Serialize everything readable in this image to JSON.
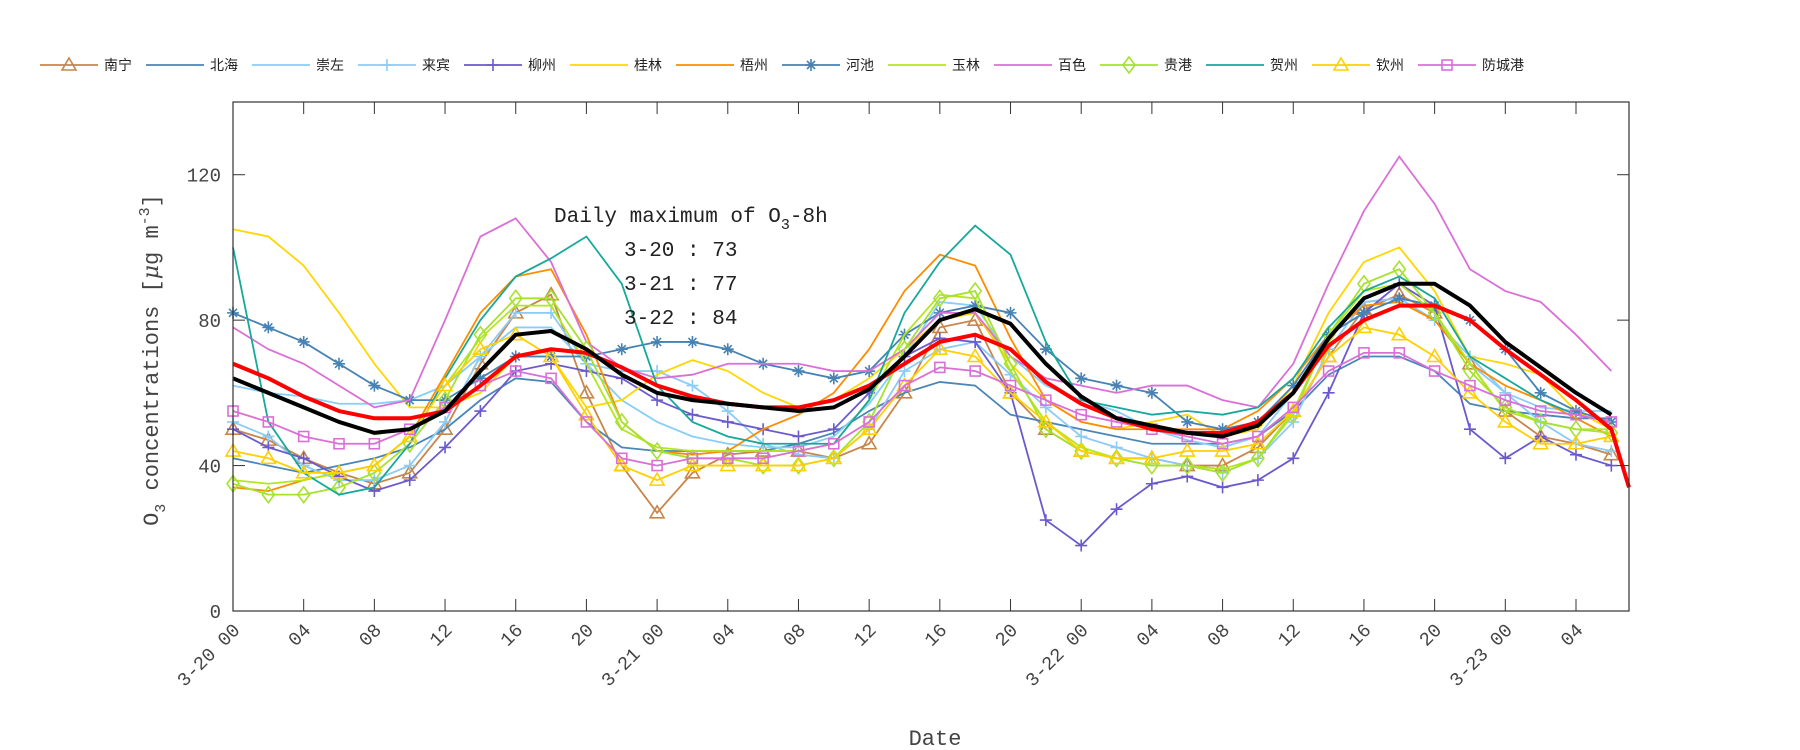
{
  "chart_data": {
    "type": "line",
    "title": "",
    "xlabel": "Date",
    "ylabel": "O3 concentrations [μg m-3]",
    "ylabel_parts": {
      "species": "O",
      "sub": "3",
      "text": " concentrations [",
      "mu": "μ",
      "unit": "g m",
      "sup": "-3",
      "close": "]"
    },
    "xlim": [
      0,
      79
    ],
    "ylim": [
      0,
      140
    ],
    "yticks": [
      0,
      40,
      80,
      120
    ],
    "xticks": [
      {
        "hour": 0,
        "label": "3-20 00"
      },
      {
        "hour": 4,
        "label": "04"
      },
      {
        "hour": 8,
        "label": "08"
      },
      {
        "hour": 12,
        "label": "12"
      },
      {
        "hour": 16,
        "label": "16"
      },
      {
        "hour": 20,
        "label": "20"
      },
      {
        "hour": 24,
        "label": "3-21 00"
      },
      {
        "hour": 28,
        "label": "04"
      },
      {
        "hour": 32,
        "label": "08"
      },
      {
        "hour": 36,
        "label": "12"
      },
      {
        "hour": 40,
        "label": "16"
      },
      {
        "hour": 44,
        "label": "20"
      },
      {
        "hour": 48,
        "label": "3-22 00"
      },
      {
        "hour": 52,
        "label": "04"
      },
      {
        "hour": 56,
        "label": "08"
      },
      {
        "hour": 60,
        "label": "12"
      },
      {
        "hour": 64,
        "label": "16"
      },
      {
        "hour": 68,
        "label": "20"
      },
      {
        "hour": 72,
        "label": "3-23 00"
      },
      {
        "hour": 76,
        "label": "04"
      }
    ],
    "grid": false,
    "legend_placement": "top",
    "annotation": {
      "title": "Daily maximum of O",
      "title_sub": "3",
      "title_end": "-8h",
      "lines": [
        "3-20 : 73",
        "3-21 : 77",
        "3-22 : 84"
      ]
    },
    "x": [
      0,
      2,
      4,
      6,
      8,
      10,
      12,
      14,
      16,
      18,
      20,
      22,
      24,
      26,
      28,
      30,
      32,
      34,
      36,
      38,
      40,
      42,
      44,
      46,
      48,
      50,
      52,
      54,
      56,
      58,
      60,
      62,
      64,
      66,
      68,
      70,
      72,
      74,
      76,
      78
    ],
    "series": [
      {
        "name": "南宁",
        "color": "#C8864A",
        "marker": "triangle",
        "values": [
          50,
          47,
          42,
          38,
          35,
          38,
          50,
          68,
          82,
          87,
          60,
          40,
          27,
          38,
          43,
          44,
          44,
          42,
          46,
          60,
          78,
          80,
          60,
          50,
          44,
          42,
          42,
          40,
          40,
          45,
          55,
          70,
          83,
          87,
          82,
          68,
          55,
          48,
          46,
          43
        ]
      },
      {
        "name": "北海",
        "color": "#4A86B8",
        "marker": "none",
        "values": [
          42,
          40,
          38,
          40,
          42,
          45,
          50,
          58,
          64,
          63,
          52,
          45,
          44,
          44,
          44,
          44,
          46,
          49,
          55,
          60,
          63,
          62,
          54,
          52,
          50,
          48,
          46,
          46,
          46,
          48,
          55,
          65,
          70,
          70,
          66,
          57,
          55,
          54,
          53,
          53
        ]
      },
      {
        "name": "崇左",
        "color": "#87CEFA",
        "marker": "none",
        "values": [
          62,
          60,
          59,
          57,
          57,
          58,
          62,
          70,
          78,
          78,
          68,
          58,
          52,
          48,
          46,
          45,
          45,
          48,
          57,
          70,
          85,
          84,
          70,
          62,
          58,
          55,
          50,
          47,
          45,
          48,
          60,
          75,
          85,
          86,
          80,
          68,
          60,
          56,
          55,
          55
        ]
      },
      {
        "name": "来宾",
        "color": "#8CCBF5",
        "marker": "plus",
        "values": [
          52,
          48,
          40,
          36,
          36,
          40,
          52,
          70,
          82,
          82,
          68,
          66,
          66,
          62,
          55,
          46,
          43,
          42,
          50,
          66,
          72,
          74,
          65,
          56,
          48,
          45,
          42,
          40,
          38,
          42,
          52,
          72,
          85,
          86,
          80,
          70,
          60,
          52,
          46,
          44
        ]
      },
      {
        "name": "柳州",
        "color": "#6A5ACD",
        "marker": "plus",
        "values": [
          50,
          45,
          42,
          37,
          33,
          36,
          45,
          55,
          66,
          68,
          66,
          64,
          58,
          54,
          52,
          50,
          48,
          50,
          60,
          70,
          75,
          74,
          60,
          25,
          18,
          28,
          35,
          37,
          34,
          36,
          42,
          60,
          82,
          90,
          84,
          50,
          42,
          48,
          43,
          40
        ]
      },
      {
        "name": "桂林",
        "color": "#FFD700",
        "marker": "none",
        "values": [
          105,
          103,
          95,
          82,
          68,
          56,
          56,
          60,
          70,
          70,
          56,
          58,
          65,
          69,
          66,
          60,
          56,
          58,
          64,
          72,
          80,
          82,
          68,
          58,
          52,
          50,
          52,
          54,
          48,
          50,
          62,
          82,
          96,
          100,
          88,
          70,
          68,
          65,
          55,
          50
        ]
      },
      {
        "name": "梧州",
        "color": "#FF8C00",
        "marker": "none",
        "values": [
          34,
          33,
          36,
          38,
          40,
          48,
          65,
          82,
          92,
          94,
          76,
          52,
          44,
          43,
          44,
          50,
          54,
          60,
          72,
          88,
          98,
          95,
          75,
          58,
          52,
          50,
          50,
          50,
          50,
          55,
          64,
          76,
          84,
          85,
          80,
          68,
          62,
          58,
          53,
          48
        ]
      },
      {
        "name": "河池",
        "color": "#4682B4",
        "marker": "asterisk",
        "values": [
          82,
          78,
          74,
          68,
          62,
          58,
          58,
          64,
          70,
          70,
          70,
          72,
          74,
          74,
          72,
          68,
          66,
          64,
          66,
          76,
          82,
          84,
          82,
          72,
          64,
          62,
          60,
          52,
          50,
          52,
          62,
          76,
          82,
          86,
          84,
          80,
          72,
          60,
          55,
          52
        ]
      },
      {
        "name": "玉林",
        "color": "#B5E61D",
        "marker": "none",
        "values": [
          36,
          35,
          36,
          38,
          40,
          48,
          62,
          75,
          84,
          84,
          68,
          50,
          45,
          44,
          44,
          44,
          44,
          46,
          58,
          76,
          87,
          86,
          66,
          52,
          45,
          42,
          40,
          40,
          39,
          42,
          55,
          76,
          88,
          90,
          82,
          68,
          55,
          52,
          50,
          50
        ]
      },
      {
        "name": "百色",
        "color": "#DA70D6",
        "marker": "none",
        "values": [
          78,
          72,
          68,
          62,
          56,
          58,
          80,
          103,
          108,
          96,
          74,
          67,
          64,
          65,
          68,
          68,
          68,
          66,
          66,
          72,
          82,
          82,
          70,
          64,
          62,
          60,
          62,
          62,
          58,
          56,
          68,
          90,
          110,
          125,
          112,
          94,
          88,
          85,
          76,
          66
        ]
      },
      {
        "name": "贵港",
        "color": "#A6E22E",
        "marker": "diamond",
        "values": [
          35,
          32,
          32,
          34,
          38,
          46,
          58,
          76,
          86,
          86,
          72,
          52,
          44,
          42,
          42,
          40,
          40,
          42,
          52,
          72,
          86,
          88,
          68,
          50,
          44,
          42,
          40,
          40,
          38,
          42,
          54,
          76,
          90,
          94,
          82,
          66,
          56,
          52,
          50,
          49
        ]
      },
      {
        "name": "贺州",
        "color": "#17A89C",
        "marker": "none",
        "values": [
          100,
          52,
          38,
          32,
          34,
          46,
          64,
          80,
          92,
          97,
          103,
          90,
          62,
          52,
          48,
          46,
          46,
          46,
          58,
          82,
          96,
          106,
          98,
          74,
          58,
          56,
          54,
          55,
          54,
          56,
          64,
          78,
          88,
          92,
          86,
          70,
          64,
          58,
          54,
          52
        ]
      },
      {
        "name": "钦州",
        "color": "#FFD000",
        "marker": "triangle",
        "values": [
          44,
          42,
          38,
          38,
          40,
          48,
          62,
          72,
          76,
          70,
          54,
          40,
          36,
          40,
          40,
          40,
          40,
          42,
          50,
          62,
          72,
          70,
          60,
          52,
          44,
          42,
          42,
          44,
          44,
          46,
          55,
          70,
          78,
          76,
          70,
          60,
          52,
          46,
          46,
          48
        ]
      },
      {
        "name": "防城港",
        "color": "#DA70D6",
        "marker": "square",
        "values": [
          55,
          52,
          48,
          46,
          46,
          50,
          56,
          62,
          66,
          64,
          52,
          42,
          40,
          42,
          42,
          42,
          44,
          46,
          52,
          62,
          67,
          66,
          62,
          58,
          54,
          52,
          50,
          48,
          46,
          48,
          56,
          66,
          71,
          71,
          66,
          62,
          58,
          55,
          54,
          52
        ]
      }
    ],
    "extra_lines": [
      {
        "color": "#FF0000",
        "x": [
          0,
          2,
          4,
          6,
          8,
          10,
          12,
          14,
          16,
          18,
          20,
          22,
          24,
          26,
          28,
          30,
          32,
          34,
          36,
          38,
          40,
          42,
          44,
          46,
          48,
          50,
          52,
          54,
          56,
          58,
          60,
          62,
          64,
          66,
          68,
          70,
          72,
          74,
          76,
          78,
          79
        ],
        "values": [
          68,
          64,
          59,
          55,
          53,
          53,
          55,
          62,
          70,
          72,
          71,
          67,
          62,
          59,
          57,
          56,
          56,
          58,
          62,
          68,
          74,
          76,
          72,
          63,
          57,
          53,
          50,
          49,
          49,
          52,
          60,
          73,
          80,
          84,
          84,
          80,
          72,
          65,
          58,
          50,
          34
        ]
      },
      {
        "color": "#000000",
        "x": [
          0,
          2,
          4,
          6,
          8,
          10,
          12,
          14,
          16,
          18,
          20,
          22,
          24,
          26,
          28,
          30,
          32,
          34,
          36,
          38,
          40,
          42,
          44,
          46,
          48,
          50,
          52,
          54,
          56,
          58,
          60,
          62,
          64,
          66,
          68,
          70,
          72,
          74,
          76,
          78
        ],
        "values": [
          64,
          60,
          56,
          52,
          49,
          50,
          55,
          66,
          76,
          77,
          72,
          65,
          60,
          58,
          57,
          56,
          55,
          56,
          61,
          70,
          80,
          83,
          79,
          68,
          59,
          53,
          51,
          49,
          48,
          51,
          60,
          75,
          86,
          90,
          90,
          84,
          74,
          67,
          60,
          54
        ]
      }
    ]
  }
}
